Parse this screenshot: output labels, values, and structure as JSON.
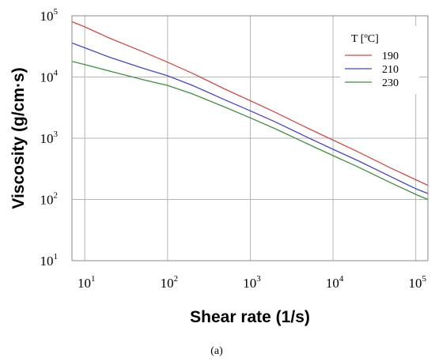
{
  "chart_data": {
    "type": "line",
    "x_scale": "log",
    "y_scale": "log",
    "xlim": [
      7,
      140000
    ],
    "ylim": [
      10,
      100000
    ],
    "x_ticks": [
      {
        "base": "10",
        "exp": "1",
        "value": 10
      },
      {
        "base": "10",
        "exp": "2",
        "value": 100
      },
      {
        "base": "10",
        "exp": "3",
        "value": 1000
      },
      {
        "base": "10",
        "exp": "4",
        "value": 10000
      },
      {
        "base": "10",
        "exp": "5",
        "value": 100000
      }
    ],
    "y_ticks": [
      {
        "base": "10",
        "exp": "1",
        "value": 10
      },
      {
        "base": "10",
        "exp": "2",
        "value": 100
      },
      {
        "base": "10",
        "exp": "3",
        "value": 1000
      },
      {
        "base": "10",
        "exp": "4",
        "value": 10000
      },
      {
        "base": "10",
        "exp": "5",
        "value": 100000
      }
    ],
    "xlabel": "Shear rate (1/s)",
    "ylabel": "Viscosity (g/cm·s)",
    "grid": true,
    "legend": {
      "title": "T [ºC]",
      "placement": "top-right"
    },
    "series": [
      {
        "name": "190",
        "color": "#d04a4a",
        "x": [
          7,
          10,
          20,
          50,
          100,
          200,
          500,
          1000,
          2000,
          5000,
          10000,
          20000,
          50000,
          100000,
          140000
        ],
        "y": [
          80000,
          66000,
          43000,
          26000,
          17500,
          11500,
          6300,
          4100,
          2650,
          1450,
          930,
          600,
          325,
          210,
          170
        ]
      },
      {
        "name": "210",
        "color": "#4646c8",
        "x": [
          7,
          10,
          20,
          50,
          100,
          200,
          500,
          1000,
          2000,
          5000,
          10000,
          20000,
          50000,
          100000,
          140000
        ],
        "y": [
          36000,
          30000,
          21000,
          14000,
          10500,
          7300,
          4200,
          2800,
          1850,
          1020,
          660,
          430,
          235,
          150,
          125
        ]
      },
      {
        "name": "230",
        "color": "#3f8f3f",
        "x": [
          7,
          10,
          20,
          50,
          100,
          200,
          500,
          1000,
          2000,
          5000,
          10000,
          20000,
          50000,
          100000,
          140000
        ],
        "y": [
          18000,
          16000,
          12500,
          9100,
          7300,
          5300,
          3200,
          2150,
          1430,
          800,
          520,
          340,
          187,
          121,
          100
        ]
      }
    ]
  },
  "caption": "(a)"
}
